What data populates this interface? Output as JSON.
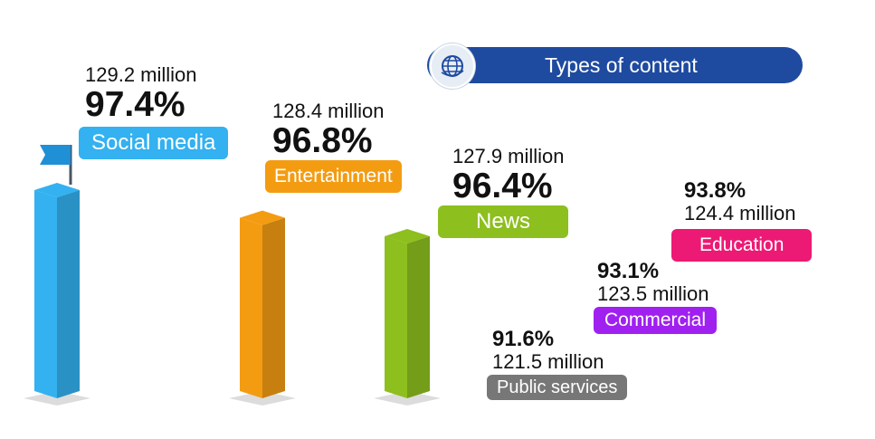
{
  "legend": {
    "title": "Types of content",
    "icon": "globe-icon"
  },
  "chart_data": {
    "type": "bar",
    "unit_caption": "million",
    "categories": [
      {
        "label": "Social media",
        "percent": 97.4,
        "percent_text": "97.4%",
        "users": 129.2,
        "users_text": "129.2 million",
        "color": "#33b1f0"
      },
      {
        "label": "Entertainment",
        "percent": 96.8,
        "percent_text": "96.8%",
        "users": 128.4,
        "users_text": "128.4 million",
        "color": "#f39c12"
      },
      {
        "label": "News",
        "percent": 96.4,
        "percent_text": "96.4%",
        "users": 127.9,
        "users_text": "127.9 million",
        "color": "#8dbf1e"
      },
      {
        "label": "Education",
        "percent": 93.8,
        "percent_text": "93.8%",
        "users": 124.4,
        "users_text": "124.4 million",
        "color": "#ec1a74"
      },
      {
        "label": "Commercial",
        "percent": 93.1,
        "percent_text": "93.1%",
        "users": 123.5,
        "users_text": "123.5 million",
        "color": "#a020f0"
      },
      {
        "label": "Public services",
        "percent": 91.6,
        "percent_text": "91.6%",
        "users": 121.5,
        "users_text": "121.5 million",
        "color": "#777777"
      }
    ]
  }
}
